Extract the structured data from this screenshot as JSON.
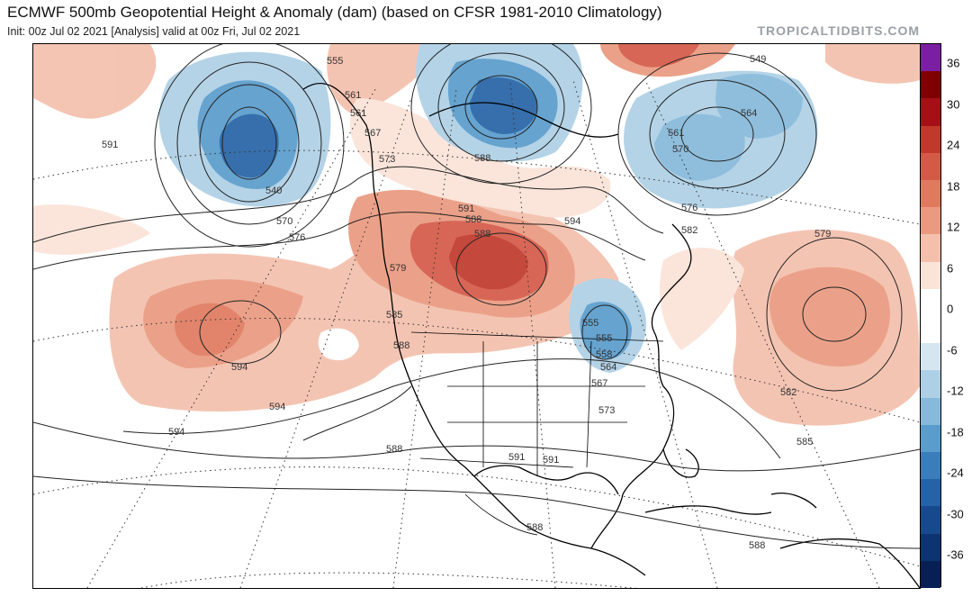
{
  "header": {
    "title": "ECMWF 500mb Geopotential Height & Anomaly (dam) (based on CFSR 1981-2010 Climatology)",
    "subtitle": "Init: 00z Jul 02 2021   [Analysis]   valid at 00z Fri, Jul 02 2021",
    "brand": "TROPICALTIDBITS.COM"
  },
  "colors": {
    "land_outline": "#000000",
    "contour": "#222222",
    "ocean": "#ffffff"
  },
  "colorbar": {
    "labels": [
      "36",
      "30",
      "24",
      "18",
      "12",
      "6",
      "0",
      "-6",
      "-12",
      "-18",
      "-24",
      "-30",
      "-36"
    ],
    "segments": [
      "#7b1fa2",
      "#7f0000",
      "#a50f15",
      "#c0392b",
      "#d45a48",
      "#e07a5f",
      "#ea9a80",
      "#f4c0ac",
      "#fbe3d8",
      "#ffffff",
      "#ffffff",
      "#d6e6f1",
      "#aed0e6",
      "#86b9da",
      "#5a9ccb",
      "#3a7dba",
      "#2563a6",
      "#174a8c",
      "#0b3470",
      "#081f55"
    ]
  },
  "contour_labels": [
    "555",
    "561",
    "561",
    "567",
    "573",
    "540",
    "570",
    "576",
    "579",
    "585",
    "588",
    "594",
    "591",
    "588",
    "588",
    "594",
    "576",
    "582",
    "588",
    "570",
    "561",
    "564",
    "549",
    "555",
    "555",
    "558",
    "564",
    "567",
    "573",
    "579",
    "582",
    "585",
    "588",
    "591",
    "594",
    "594",
    "588",
    "591",
    "588",
    "591"
  ]
}
